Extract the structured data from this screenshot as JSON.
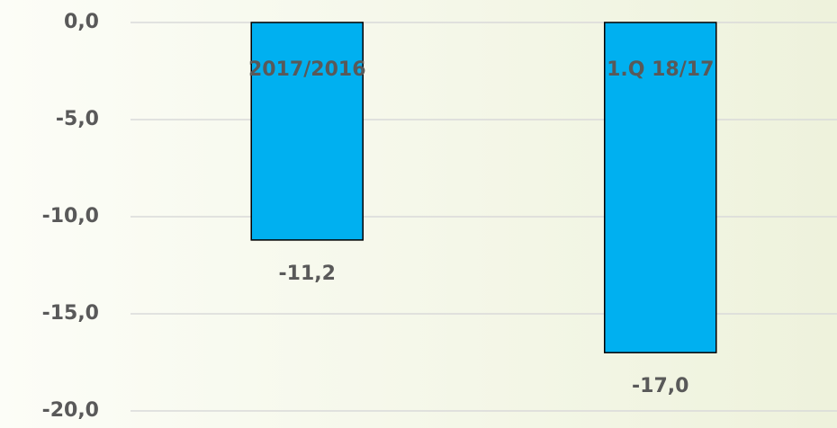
{
  "chart_data": {
    "type": "bar",
    "categories": [
      "2017/2016",
      "1.Q 18/17"
    ],
    "values": [
      -11.2,
      -17.0
    ],
    "value_labels": [
      "-11,2",
      "-17,0"
    ],
    "color": "#00b0f0",
    "ylim": [
      -20,
      0
    ],
    "yticks": [
      {
        "value": 0,
        "label": "0,0"
      },
      {
        "value": -5,
        "label": "-5,0"
      },
      {
        "value": -10,
        "label": "-10,0"
      },
      {
        "value": -15,
        "label": "-15,0"
      },
      {
        "value": -20,
        "label": "-20,0"
      }
    ],
    "grid": true
  }
}
